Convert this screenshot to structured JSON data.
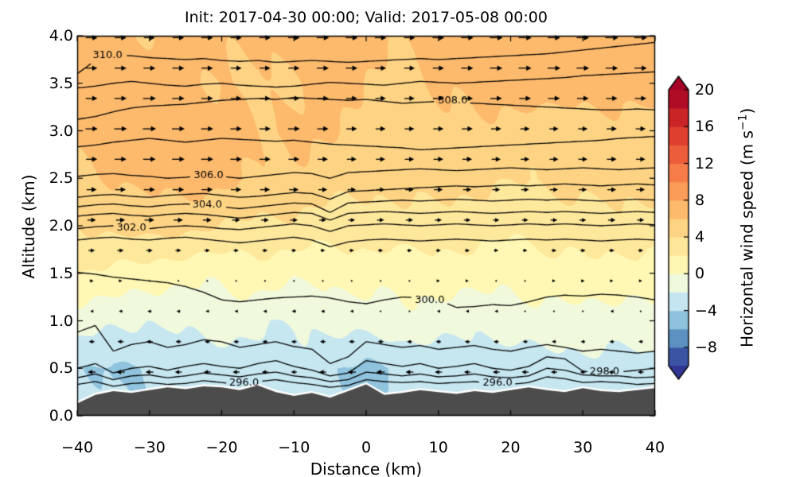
{
  "figure": {
    "title": "Init: 2017-04-30 00:00; Valid: 2017-05-08 00:00",
    "xlabel": "Distance (km)",
    "ylabel": "Altitude (km)"
  },
  "colorbar": {
    "label_prefix": "Horizontal wind speed (m s",
    "label_sup": "−1",
    "label_suffix": ")",
    "ticks": [
      20,
      16,
      12,
      8,
      4,
      0,
      -4,
      -8
    ],
    "tick_labels": [
      "20",
      "16",
      "12",
      "8",
      "4",
      "0",
      "−4",
      "−8"
    ],
    "rect_vmin": -10,
    "rect_vmax": 20,
    "band_step": 2,
    "extend": "both",
    "cmap_name": "RdYlBu_r",
    "cmap_anchors": [
      "#313695",
      "#4575b4",
      "#74add1",
      "#abd9e9",
      "#e0f3f8",
      "#ffffbf",
      "#fee090",
      "#fdae61",
      "#f46d43",
      "#d73027",
      "#a50026"
    ],
    "norm": {
      "type": "two-slope",
      "vcenter": 0,
      "vmin": -10,
      "vmax": 20
    }
  },
  "chart_data": {
    "type": "heatmap",
    "subtype": "filled-contour-cross-section",
    "title": "Init: 2017-04-30 00:00; Valid: 2017-05-08 00:00",
    "xlabel": "Distance (km)",
    "ylabel": "Altitude (km)",
    "xlim": [
      -40,
      40
    ],
    "ylim": [
      0,
      4
    ],
    "xticks": [
      -40,
      -30,
      -20,
      -10,
      0,
      10,
      20,
      30,
      40
    ],
    "xtick_labels": [
      "−40",
      "−30",
      "−20",
      "−10",
      "0",
      "10",
      "20",
      "30",
      "40"
    ],
    "yticks": [
      0.0,
      0.5,
      1.0,
      1.5,
      2.0,
      2.5,
      3.0,
      3.5,
      4.0
    ],
    "ytick_labels": [
      "0.0",
      "0.5",
      "1.0",
      "1.5",
      "2.0",
      "2.5",
      "3.0",
      "3.5",
      "4.0"
    ],
    "grid": false,
    "wind_speed": {
      "units": "m s-1",
      "x_start": -40,
      "x_step": 5,
      "z_start": 0,
      "z_step": 0.5,
      "rows_bottom_to_top": [
        [
          -3.0,
          -4.0,
          -3.5,
          -3.0,
          -3.5,
          -3.0,
          -2.5,
          -3.0,
          -4.0,
          -3.5,
          -3.0,
          -2.5,
          -3.0,
          -2.5,
          -2.0,
          -2.5,
          -2.0
        ],
        [
          -3.5,
          -4.5,
          -4.0,
          -3.0,
          -3.5,
          -3.0,
          -2.5,
          -3.5,
          -4.5,
          -4.0,
          -3.5,
          -3.0,
          -3.5,
          -3.0,
          -2.5,
          -3.0,
          -2.5
        ],
        [
          -1.0,
          -1.5,
          -2.0,
          -1.5,
          -1.0,
          -1.5,
          -2.0,
          -1.5,
          -1.0,
          -0.5,
          -1.0,
          -1.5,
          -1.0,
          -0.5,
          -1.0,
          -1.0,
          -0.5
        ],
        [
          2.0,
          1.5,
          1.0,
          0.5,
          0.5,
          1.0,
          0.5,
          0.5,
          1.0,
          0.5,
          1.0,
          1.0,
          0.5,
          1.0,
          1.5,
          1.0,
          1.0
        ],
        [
          4.0,
          4.5,
          5.0,
          4.5,
          4.0,
          3.5,
          3.5,
          3.0,
          3.0,
          3.5,
          3.0,
          3.0,
          2.5,
          3.0,
          3.0,
          3.5,
          3.0
        ],
        [
          5.5,
          6.0,
          6.5,
          7.0,
          6.5,
          6.0,
          5.5,
          5.0,
          4.5,
          4.5,
          5.0,
          4.5,
          4.0,
          4.5,
          4.5,
          5.0,
          4.5
        ],
        [
          6.5,
          7.0,
          7.5,
          7.0,
          6.5,
          6.0,
          6.5,
          6.0,
          5.5,
          5.0,
          5.5,
          6.0,
          5.0,
          4.5,
          5.0,
          5.5,
          5.0
        ],
        [
          6.0,
          6.5,
          7.0,
          6.5,
          6.0,
          5.5,
          6.0,
          6.5,
          6.0,
          5.5,
          6.0,
          6.5,
          7.0,
          7.5,
          7.0,
          6.5,
          7.0
        ],
        [
          6.5,
          6.5,
          6.0,
          6.5,
          6.5,
          6.0,
          6.5,
          7.0,
          6.5,
          6.0,
          6.5,
          7.0,
          7.5,
          7.0,
          7.0,
          7.5,
          7.0
        ]
      ]
    },
    "theta_contours": {
      "units": "K",
      "interval": 1,
      "x_start": -40,
      "x_step": 2.5,
      "levels": [
        {
          "level": 296,
          "z": [
            0.33,
            0.36,
            0.31,
            0.34,
            0.35,
            0.33,
            0.34,
            0.37,
            0.35,
            0.33,
            0.36,
            0.38,
            0.35,
            0.33,
            0.3,
            0.32,
            0.38,
            0.36,
            0.35,
            0.36,
            0.34,
            0.35,
            0.36,
            0.34,
            0.33,
            0.35,
            0.41,
            0.39,
            0.35,
            0.36,
            0.35,
            0.33,
            0.34
          ]
        },
        {
          "level": 297,
          "z": [
            0.4,
            0.44,
            0.38,
            0.42,
            0.43,
            0.4,
            0.42,
            0.45,
            0.43,
            0.41,
            0.44,
            0.46,
            0.42,
            0.4,
            0.36,
            0.38,
            0.46,
            0.44,
            0.42,
            0.44,
            0.41,
            0.42,
            0.44,
            0.41,
            0.4,
            0.42,
            0.5,
            0.48,
            0.43,
            0.42,
            0.42,
            0.4,
            0.41
          ]
        },
        {
          "level": 298,
          "z": [
            0.5,
            0.55,
            0.45,
            0.5,
            0.52,
            0.48,
            0.52,
            0.55,
            0.52,
            0.5,
            0.55,
            0.58,
            0.52,
            0.48,
            0.42,
            0.45,
            0.58,
            0.55,
            0.52,
            0.55,
            0.5,
            0.52,
            0.55,
            0.5,
            0.48,
            0.52,
            0.62,
            0.6,
            0.47,
            0.45,
            0.46,
            0.48,
            0.5
          ]
        },
        {
          "level": 299,
          "z": [
            0.88,
            0.95,
            0.68,
            0.75,
            0.78,
            0.72,
            0.75,
            0.8,
            0.78,
            0.72,
            0.75,
            0.78,
            0.73,
            0.7,
            0.55,
            0.62,
            0.78,
            0.75,
            0.72,
            0.74,
            0.7,
            0.72,
            0.74,
            0.7,
            0.68,
            0.72,
            0.75,
            0.72,
            0.68,
            0.7,
            0.68,
            0.66,
            0.68
          ]
        },
        {
          "level": 300,
          "z": [
            1.51,
            1.49,
            1.46,
            1.44,
            1.42,
            1.4,
            1.36,
            1.3,
            1.22,
            1.2,
            1.22,
            1.24,
            1.25,
            1.26,
            1.24,
            1.2,
            1.18,
            1.22,
            1.25,
            1.24,
            1.22,
            1.14,
            1.15,
            1.17,
            1.16,
            1.2,
            1.25,
            1.27,
            1.26,
            1.28,
            1.27,
            1.25,
            1.22
          ]
        },
        {
          "level": 301,
          "z": [
            1.85,
            1.87,
            1.88,
            1.86,
            1.85,
            1.87,
            1.88,
            1.86,
            1.84,
            1.82,
            1.84,
            1.86,
            1.88,
            1.85,
            1.78,
            1.83,
            1.85,
            1.86,
            1.85,
            1.84,
            1.85,
            1.86,
            1.85,
            1.84,
            1.85,
            1.86,
            1.85,
            1.86,
            1.85,
            1.84,
            1.85,
            1.86,
            1.85
          ]
        },
        {
          "level": 302,
          "z": [
            1.97,
            1.99,
            2.0,
            1.98,
            1.97,
            1.99,
            2.0,
            1.99,
            1.97,
            1.96,
            1.98,
            2.0,
            2.02,
            2.0,
            1.94,
            2.0,
            2.01,
            2.02,
            2.01,
            2.0,
            2.01,
            2.02,
            2.01,
            2.0,
            2.01,
            2.02,
            2.01,
            2.02,
            2.01,
            2.0,
            2.01,
            2.02,
            2.01
          ]
        },
        {
          "level": 303,
          "z": [
            2.1,
            2.12,
            2.13,
            2.11,
            2.1,
            2.12,
            2.13,
            2.12,
            2.1,
            2.08,
            2.1,
            2.12,
            2.14,
            2.13,
            2.06,
            2.13,
            2.14,
            2.15,
            2.14,
            2.13,
            2.14,
            2.15,
            2.14,
            2.13,
            2.14,
            2.15,
            2.14,
            2.15,
            2.14,
            2.13,
            2.14,
            2.15,
            2.14
          ]
        },
        {
          "level": 304,
          "z": [
            2.2,
            2.22,
            2.23,
            2.21,
            2.2,
            2.22,
            2.23,
            2.22,
            2.2,
            2.18,
            2.2,
            2.22,
            2.24,
            2.23,
            2.14,
            2.24,
            2.25,
            2.26,
            2.27,
            2.26,
            2.27,
            2.28,
            2.27,
            2.26,
            2.27,
            2.28,
            2.27,
            2.28,
            2.27,
            2.26,
            2.27,
            2.28,
            2.27
          ]
        },
        {
          "level": 305,
          "z": [
            2.3,
            2.32,
            2.33,
            2.31,
            2.3,
            2.32,
            2.33,
            2.34,
            2.32,
            2.3,
            2.31,
            2.33,
            2.35,
            2.34,
            2.28,
            2.36,
            2.37,
            2.38,
            2.39,
            2.4,
            2.41,
            2.42,
            2.41,
            2.42,
            2.43,
            2.42,
            2.43,
            2.44,
            2.43,
            2.42,
            2.43,
            2.44,
            2.43
          ]
        },
        {
          "level": 306,
          "z": [
            2.52,
            2.54,
            2.55,
            2.53,
            2.52,
            2.5,
            2.51,
            2.53,
            2.52,
            2.5,
            2.52,
            2.54,
            2.56,
            2.55,
            2.5,
            2.56,
            2.57,
            2.58,
            2.59,
            2.6,
            2.59,
            2.58,
            2.59,
            2.6,
            2.61,
            2.6,
            2.59,
            2.6,
            2.61,
            2.6,
            2.59,
            2.6,
            2.61
          ]
        },
        {
          "level": 307,
          "z": [
            2.83,
            2.85,
            2.88,
            2.9,
            2.92,
            2.9,
            2.88,
            2.9,
            2.92,
            2.91,
            2.9,
            2.89,
            2.9,
            2.88,
            2.86,
            2.85,
            2.84,
            2.83,
            2.82,
            2.8,
            2.81,
            2.82,
            2.83,
            2.84,
            2.85,
            2.86,
            2.87,
            2.88,
            2.89,
            2.9,
            2.92,
            2.93,
            2.94
          ]
        },
        {
          "level": 308,
          "z": [
            3.12,
            3.15,
            3.2,
            3.24,
            3.26,
            3.27,
            3.28,
            3.3,
            3.32,
            3.33,
            3.34,
            3.33,
            3.35,
            3.34,
            3.33,
            3.32,
            3.33,
            3.31,
            3.29,
            3.3,
            3.31,
            3.3,
            3.29,
            3.28,
            3.27,
            3.26,
            3.25,
            3.24,
            3.23,
            3.22,
            3.22,
            3.23,
            3.22
          ]
        },
        {
          "level": 309,
          "z": [
            3.45,
            3.47,
            3.5,
            3.52,
            3.5,
            3.48,
            3.47,
            3.49,
            3.5,
            3.48,
            3.47,
            3.46,
            3.47,
            3.49,
            3.51,
            3.5,
            3.49,
            3.48,
            3.5,
            3.52,
            3.51,
            3.5,
            3.51,
            3.52,
            3.53,
            3.54,
            3.55,
            3.56,
            3.58,
            3.59,
            3.6,
            3.61,
            3.62
          ]
        },
        {
          "level": 310,
          "z": [
            3.6,
            3.74,
            3.8,
            3.79,
            3.77,
            3.76,
            3.75,
            3.76,
            3.74,
            3.73,
            3.74,
            3.72,
            3.73,
            3.74,
            3.73,
            3.72,
            3.73,
            3.74,
            3.75,
            3.76,
            3.75,
            3.76,
            3.77,
            3.78,
            3.79,
            3.8,
            3.81,
            3.83,
            3.85,
            3.87,
            3.89,
            3.91,
            3.93
          ]
        }
      ]
    },
    "contour_labels": [
      {
        "text": "310.0",
        "level": 310,
        "x": -35.8,
        "z": 3.79
      },
      {
        "text": "308.0",
        "level": 308,
        "x": 12.0,
        "z": 3.32
      },
      {
        "text": "306.0",
        "level": 306,
        "x": -21.8,
        "z": 2.53
      },
      {
        "text": "304.0",
        "level": 304,
        "x": -22.0,
        "z": 2.22
      },
      {
        "text": "302.0",
        "level": 302,
        "x": -32.5,
        "z": 1.98
      },
      {
        "text": "300.0",
        "level": 300,
        "x": 8.8,
        "z": 1.22
      },
      {
        "text": "296.0",
        "level": 296,
        "x": -16.9,
        "z": 0.35
      },
      {
        "text": "296.0",
        "level": 296,
        "x": 18.2,
        "z": 0.35
      },
      {
        "text": "298.0",
        "level": 298,
        "x": 33.0,
        "z": 0.46
      }
    ],
    "terrain": {
      "color": "#4c4c4c",
      "edge_color": "#ffffff",
      "x_start": -40,
      "x_step": 2.5,
      "height": [
        0.13,
        0.22,
        0.26,
        0.24,
        0.27,
        0.3,
        0.28,
        0.31,
        0.3,
        0.27,
        0.32,
        0.25,
        0.21,
        0.24,
        0.19,
        0.26,
        0.33,
        0.22,
        0.24,
        0.27,
        0.25,
        0.23,
        0.26,
        0.24,
        0.27,
        0.3,
        0.27,
        0.25,
        0.29,
        0.26,
        0.25,
        0.27,
        0.29
      ]
    },
    "quiver": {
      "direction": "horizontal (u-component); right = positive, left = negative",
      "x_start": -38,
      "x_step": 4,
      "cols": 20,
      "z_start": 0.14,
      "z_step": 0.32,
      "rows": 13,
      "color": "#000000"
    }
  }
}
